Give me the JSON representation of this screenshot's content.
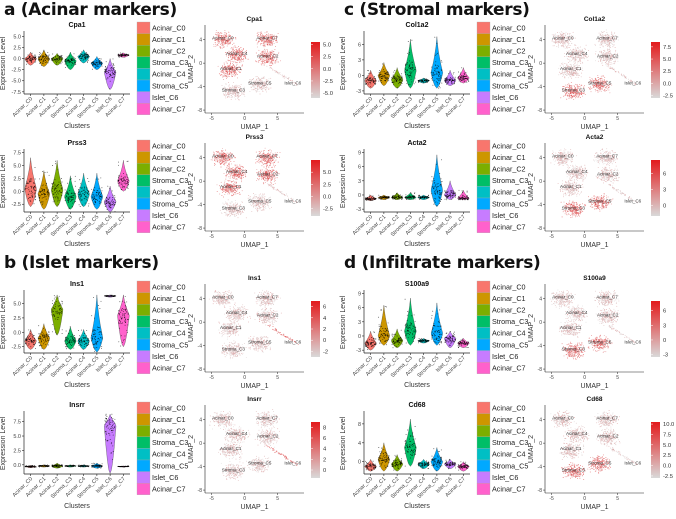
{
  "sections": [
    {
      "title": "a (Acinar markers)",
      "plots": [
        "Cpa1",
        "Prss3"
      ]
    },
    {
      "title": "b (Islet markers)",
      "plots": [
        "Ins1",
        "Insrr"
      ]
    },
    {
      "title": "c (Stromal markers)",
      "plots": [
        "Col1a2",
        "Acta2"
      ]
    },
    {
      "title": "d (Infiltrate markers)",
      "plots": [
        "S100a9",
        "Cd68"
      ]
    }
  ],
  "clusters": [
    "Acinar_C0",
    "Acinar_C1",
    "Acinar_C2",
    "Stroma_C3",
    "Acinar_C4",
    "Stroma_C5",
    "Islet_C6",
    "Acinar_C7"
  ],
  "cluster_colors": [
    "#F8766D",
    "#CD9600",
    "#7CAE00",
    "#00BE67",
    "#00BFC4",
    "#00A9FF",
    "#C77CFF",
    "#FF61CC"
  ],
  "violin_xlabel": "Clusters",
  "violin_ylabel": "Expression Level",
  "umap_xlabel": "UMAP_1",
  "umap_ylabel": "UMAP_2",
  "umap_xticks": [
    -5,
    0,
    5
  ],
  "umap_yticks": [
    4,
    0,
    -4,
    -8
  ],
  "umap_xlim": [
    -6,
    9
  ],
  "umap_ylim": [
    -8.5,
    6.5
  ],
  "umap_labels": [
    {
      "text": "Acinar_C0",
      "x": -3.3,
      "y": 4
    },
    {
      "text": "Acinar_C7",
      "x": 3.4,
      "y": 4
    },
    {
      "text": "Acinar_C4",
      "x": -1.2,
      "y": 1.4
    },
    {
      "text": "Acinar_C2",
      "x": 3.5,
      "y": 1
    },
    {
      "text": "Acinar_C1",
      "x": -2.1,
      "y": -1.2
    },
    {
      "text": "Stroma_C5",
      "x": 2.3,
      "y": -3.6
    },
    {
      "text": "Stroma_C3",
      "x": -1.7,
      "y": -4.8
    },
    {
      "text": "Islet_C6",
      "x": 7.3,
      "y": -3.6
    }
  ],
  "colorbar_colors": [
    "#D9D9D9",
    "#E31A1C"
  ],
  "chart_data": [
    {
      "type": "violin",
      "gene": "Cpa1",
      "ylim": [
        -8,
        5.8
      ],
      "yticks": [
        "-7.5",
        "-5.0",
        "-2.5",
        "0.0",
        "2.5",
        "5.0"
      ],
      "violins": [
        [
          0,
          -1.5,
          1.5
        ],
        [
          0,
          -1.8,
          2
        ],
        [
          0,
          -1.5,
          1.2
        ],
        [
          -0.5,
          -2.5,
          1.5
        ],
        [
          0.5,
          -1,
          2
        ],
        [
          -1,
          -2.5,
          0.5
        ],
        [
          -3,
          -7,
          0
        ],
        [
          0.8,
          0.3,
          1.3
        ]
      ],
      "umap_high": [
        0,
        1,
        2,
        4,
        7
      ],
      "cbar_ticks": [
        "5.0",
        "2.5",
        "0.0",
        "-2.5",
        "-5.0"
      ],
      "cbar_range": [
        -6,
        5.5
      ]
    },
    {
      "type": "violin",
      "gene": "Prss3",
      "ylim": [
        -4,
        7.8
      ],
      "yticks": [
        "-2.5",
        "0.0",
        "2.5",
        "5.0",
        "7.5"
      ],
      "violins": [
        [
          0.5,
          -3,
          6.5
        ],
        [
          -0.5,
          -3.5,
          4
        ],
        [
          0.3,
          -3,
          6
        ],
        [
          -1,
          -3.5,
          3
        ],
        [
          -0.5,
          -3,
          3.5
        ],
        [
          -1,
          -3.5,
          3.5
        ],
        [
          -2,
          -4,
          1
        ],
        [
          2,
          0,
          6
        ]
      ],
      "umap_high": [
        0,
        1,
        2,
        4,
        7
      ],
      "cbar_ticks": [
        "5.0",
        "2.5",
        "0.0",
        "-2.5"
      ],
      "cbar_range": [
        -4,
        7.5
      ]
    },
    {
      "type": "violin",
      "gene": "Ins1",
      "ylim": [
        -3.6,
        7
      ],
      "yticks": [
        "-2.5",
        "0.0",
        "2.5",
        "5.0"
      ],
      "violins": [
        [
          -1.5,
          -3,
          0.5
        ],
        [
          -1,
          -3,
          1.5
        ],
        [
          4,
          -0.5,
          6.5
        ],
        [
          -1.5,
          -3,
          1
        ],
        [
          -1.5,
          -3,
          0.5
        ],
        [
          -1,
          -3.5,
          6.5
        ],
        [
          6.3,
          6.1,
          6.5
        ],
        [
          3,
          -2.5,
          6.5
        ]
      ],
      "umap_high": [
        6
      ],
      "cbar_ticks": [
        "6",
        "4",
        "2",
        "0",
        "-2"
      ],
      "cbar_range": [
        -3,
        7
      ]
    },
    {
      "type": "violin",
      "gene": "Insrr",
      "ylim": [
        -1.6,
        9
      ],
      "yticks": [
        "0.0",
        "2.5",
        "5.0",
        "7.5"
      ],
      "violins": [
        [
          -0.3,
          -0.5,
          -0.1
        ],
        [
          -0.2,
          -0.4,
          0
        ],
        [
          -0.2,
          -0.6,
          0.3
        ],
        [
          -0.2,
          -0.4,
          0
        ],
        [
          -0.2,
          -0.4,
          0
        ],
        [
          -0.2,
          -0.6,
          0.3
        ],
        [
          7,
          -1.5,
          8.8
        ],
        [
          -0.3,
          -0.4,
          -0.2
        ]
      ],
      "umap_high": [
        6
      ],
      "cbar_ticks": [
        "8",
        "6",
        "4",
        "2",
        "0"
      ],
      "cbar_range": [
        -1.5,
        9
      ]
    },
    {
      "type": "violin",
      "gene": "Col1a2",
      "ylim": [
        -3.6,
        8.2
      ],
      "yticks": [
        "-3",
        "0",
        "3",
        "6"
      ],
      "violins": [
        [
          -1,
          -2.5,
          1
        ],
        [
          0,
          -2,
          2.5
        ],
        [
          -0.8,
          -2.5,
          1.5
        ],
        [
          1,
          -2.5,
          7
        ],
        [
          -1,
          -1.5,
          -0.5
        ],
        [
          0.5,
          -2.5,
          7.5
        ],
        [
          -1,
          -2,
          1
        ],
        [
          -0.5,
          -1.5,
          1.5
        ]
      ],
      "umap_high": [
        3,
        5
      ],
      "cbar_ticks": [
        "7.5",
        "5.0",
        "2.5",
        "0.0",
        "-2.5"
      ],
      "cbar_range": [
        -3,
        8.5
      ]
    },
    {
      "type": "violin",
      "gene": "Acta2",
      "ylim": [
        -3.6,
        9.3
      ],
      "yticks": [
        "-3",
        "0",
        "3",
        "6",
        "9"
      ],
      "violins": [
        [
          -0.8,
          -1.2,
          0
        ],
        [
          -0.5,
          -1,
          0
        ],
        [
          -0.5,
          -1,
          0.5
        ],
        [
          -0.5,
          -1,
          0.5
        ],
        [
          -0.5,
          -1,
          0
        ],
        [
          1,
          -2.5,
          8.5
        ],
        [
          0,
          -1,
          3
        ],
        [
          -0.7,
          -1,
          1
        ]
      ],
      "umap_high": [
        3,
        5
      ],
      "cbar_ticks": [
        "6",
        "3",
        "0"
      ],
      "cbar_range": [
        -2,
        8.5
      ]
    },
    {
      "type": "violin",
      "gene": "S100a9",
      "ylim": [
        -3.6,
        9.3
      ],
      "yticks": [
        "-3",
        "0",
        "3",
        "6",
        "9"
      ],
      "violins": [
        [
          -1.5,
          -3,
          1
        ],
        [
          0,
          -2,
          6.5
        ],
        [
          -1,
          -2.5,
          1.5
        ],
        [
          1,
          -2,
          8
        ],
        [
          -1,
          -1.5,
          -0.5
        ],
        [
          0.5,
          -2,
          7
        ],
        [
          -0.5,
          -2.5,
          1
        ],
        [
          -1.5,
          -2.5,
          -0.5
        ]
      ],
      "umap_high": [
        3,
        5
      ],
      "cbar_ticks": [
        "6",
        "3",
        "0",
        "-3"
      ],
      "cbar_range": [
        -3.5,
        8
      ]
    },
    {
      "type": "violin",
      "gene": "Cd68",
      "ylim": [
        -2.6,
        10.3
      ],
      "yticks": [
        "0",
        "4",
        "8"
      ],
      "violins": [
        [
          -1,
          -2,
          0.5
        ],
        [
          0.5,
          -2,
          4
        ],
        [
          -0.5,
          -2,
          1.5
        ],
        [
          3,
          -1,
          9
        ],
        [
          -0.5,
          -1.5,
          0.5
        ],
        [
          0,
          -2,
          3
        ],
        [
          -0.5,
          -1.5,
          0.5
        ],
        [
          -1,
          -2,
          0
        ]
      ],
      "umap_high": [
        3,
        5
      ],
      "cbar_ticks": [
        "10.0",
        "7.5",
        "5.0",
        "2.5",
        "0.0",
        "-2.5"
      ],
      "cbar_range": [
        -3,
        10.5
      ]
    }
  ]
}
